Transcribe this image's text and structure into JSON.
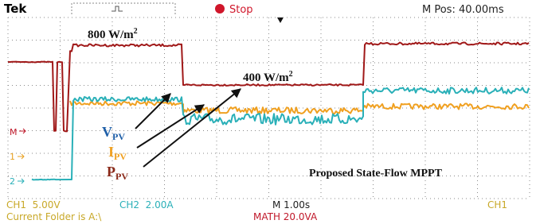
{
  "header": {
    "brand": "Tek",
    "status": "Stop",
    "position": "M Pos: 40.00ms"
  },
  "annotations": {
    "irradiance_high": {
      "text": "800 W/m",
      "sup": "2"
    },
    "irradiance_low": {
      "text": "400 W/m",
      "sup": "2"
    },
    "voltage": {
      "symbol": "V",
      "sub": "PV"
    },
    "current": {
      "symbol": "I",
      "sub": "PV"
    },
    "power": {
      "symbol": "P",
      "sub": "PV"
    },
    "method": "Proposed State-Flow MPPT"
  },
  "channel_markers": [
    "M",
    "1",
    "2"
  ],
  "footer": {
    "ch1": "CH1  5.00V",
    "ch2": "CH2  2.00A",
    "timebase": "M 1.00s",
    "trigger": "CH1",
    "folder": "Current Folder is A:\\",
    "math": "MATH 20.0VA"
  }
}
